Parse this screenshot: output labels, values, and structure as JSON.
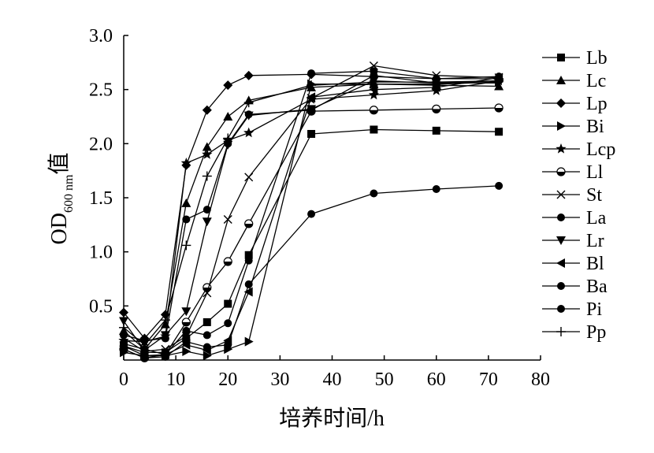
{
  "chart_data": {
    "type": "line",
    "xlabel": "培养时间/h",
    "ylabel_main": "OD",
    "ylabel_sub": "600 nm",
    "ylabel_suffix": "值",
    "xlim": [
      0,
      80
    ],
    "ylim": [
      0,
      3.0
    ],
    "xticks": [
      0,
      10,
      20,
      30,
      40,
      50,
      60,
      70,
      80
    ],
    "yticks": [
      0.5,
      1.0,
      1.5,
      2.0,
      2.5,
      3.0
    ],
    "xtick_labels": [
      "0",
      "10",
      "20",
      "30",
      "40",
      "50",
      "60",
      "70",
      "80"
    ],
    "ytick_labels": [
      "0.5",
      "1.0",
      "1.5",
      "2.0",
      "2.5",
      "3.0"
    ],
    "grid": false,
    "legend_position": "right",
    "series": [
      {
        "name": "Lb",
        "marker": "square",
        "x": [
          0,
          4,
          8,
          12,
          16,
          20,
          24,
          36,
          48,
          60,
          72
        ],
        "y": [
          0.13,
          0.07,
          0.07,
          0.2,
          0.35,
          0.52,
          0.97,
          2.09,
          2.13,
          2.12,
          2.11
        ]
      },
      {
        "name": "Lc",
        "marker": "triangle-up",
        "x": [
          0,
          4,
          8,
          12,
          16,
          20,
          24,
          36,
          48,
          60,
          72
        ],
        "y": [
          0.27,
          0.1,
          0.33,
          1.45,
          1.97,
          2.25,
          2.4,
          2.52,
          2.55,
          2.54,
          2.53
        ]
      },
      {
        "name": "Lp",
        "marker": "diamond",
        "x": [
          0,
          4,
          8,
          12,
          16,
          20,
          24,
          36,
          48,
          60,
          72
        ],
        "y": [
          0.44,
          0.2,
          0.42,
          1.8,
          2.31,
          2.54,
          2.63,
          2.64,
          2.62,
          2.6,
          2.6
        ]
      },
      {
        "name": "Bi",
        "marker": "triangle-right",
        "x": [
          0,
          4,
          8,
          12,
          16,
          20,
          24,
          36,
          48,
          60,
          72
        ],
        "y": [
          0.07,
          0.04,
          0.04,
          0.08,
          0.04,
          0.1,
          0.17,
          2.55,
          2.55,
          2.55,
          2.57
        ]
      },
      {
        "name": "Lcp",
        "marker": "star",
        "x": [
          0,
          4,
          8,
          12,
          16,
          20,
          24,
          36,
          48,
          60,
          72
        ],
        "y": [
          0.18,
          0.17,
          0.22,
          1.82,
          1.9,
          2.03,
          2.1,
          2.41,
          2.45,
          2.49,
          2.58
        ]
      },
      {
        "name": "Ll",
        "marker": "half-circle",
        "x": [
          0,
          4,
          8,
          12,
          16,
          20,
          24,
          36,
          48,
          60,
          72
        ],
        "y": [
          0.1,
          0.02,
          0.05,
          0.35,
          0.67,
          0.91,
          1.26,
          2.3,
          2.31,
          2.32,
          2.33
        ]
      },
      {
        "name": "St",
        "marker": "x",
        "x": [
          0,
          4,
          8,
          12,
          16,
          20,
          24,
          36,
          48,
          60,
          72
        ],
        "y": [
          0.2,
          0.08,
          0.1,
          0.22,
          0.62,
          1.3,
          1.69,
          2.42,
          2.72,
          2.63,
          2.61
        ]
      },
      {
        "name": "La",
        "marker": "circle",
        "x": [
          0,
          4,
          8,
          12,
          16,
          20,
          24,
          36,
          48,
          60,
          72
        ],
        "y": [
          0.23,
          0.18,
          0.2,
          1.3,
          1.39,
          2.0,
          2.27,
          2.31,
          2.63,
          2.56,
          2.58
        ]
      },
      {
        "name": "Lr",
        "marker": "triangle-down",
        "x": [
          0,
          4,
          8,
          12,
          16,
          20,
          24,
          36,
          48,
          60,
          72
        ],
        "y": [
          0.36,
          0.09,
          0.23,
          0.45,
          1.28,
          1.99,
          2.26,
          2.32,
          2.58,
          2.56,
          2.56
        ]
      },
      {
        "name": "Bl",
        "marker": "triangle-left",
        "x": [
          0,
          4,
          8,
          12,
          16,
          20,
          24,
          36,
          48,
          60,
          72
        ],
        "y": [
          0.13,
          0.04,
          0.05,
          0.14,
          0.09,
          0.18,
          0.63,
          2.43,
          2.5,
          2.52,
          2.61
        ]
      },
      {
        "name": "Ba",
        "marker": "circle",
        "x": [
          0,
          4,
          8,
          12,
          16,
          20,
          24,
          36,
          48,
          60,
          72
        ],
        "y": [
          0.15,
          0.1,
          0.05,
          0.27,
          0.23,
          0.34,
          0.92,
          2.65,
          2.67,
          2.6,
          2.62
        ]
      },
      {
        "name": "Pi",
        "marker": "circle",
        "x": [
          0,
          4,
          8,
          12,
          16,
          20,
          24,
          36,
          48,
          60,
          72
        ],
        "y": [
          0.1,
          0.02,
          0.03,
          0.17,
          0.12,
          0.14,
          0.7,
          1.35,
          1.54,
          1.58,
          1.61
        ]
      },
      {
        "name": "Pp",
        "marker": "plus",
        "x": [
          0,
          4,
          8,
          12,
          16,
          20,
          24,
          36,
          48,
          60,
          72
        ],
        "y": [
          0.3,
          0.14,
          0.37,
          1.06,
          1.7,
          2.05,
          2.38,
          2.54,
          2.57,
          2.57,
          2.58
        ]
      }
    ]
  }
}
